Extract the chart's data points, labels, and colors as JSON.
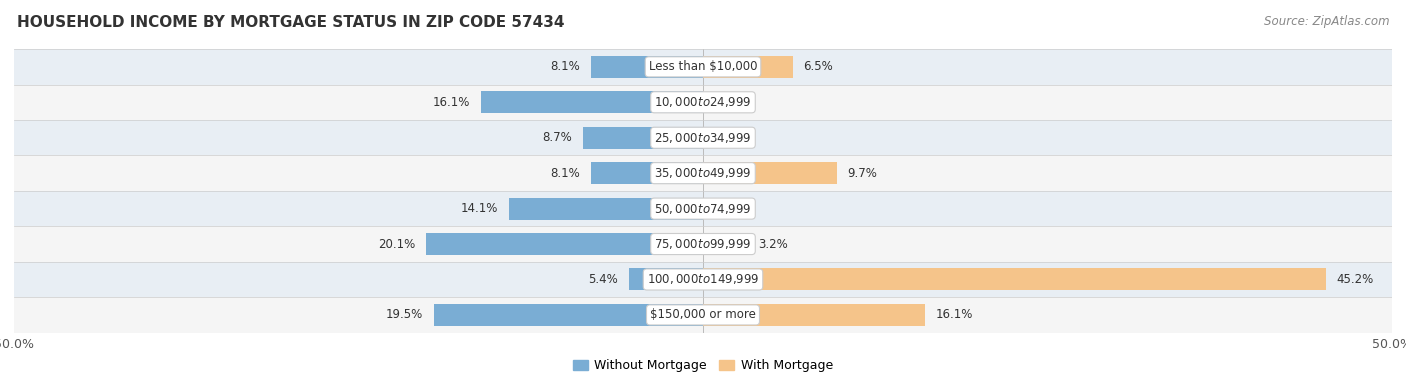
{
  "title": "HOUSEHOLD INCOME BY MORTGAGE STATUS IN ZIP CODE 57434",
  "source": "Source: ZipAtlas.com",
  "categories": [
    "Less than $10,000",
    "$10,000 to $24,999",
    "$25,000 to $34,999",
    "$35,000 to $49,999",
    "$50,000 to $74,999",
    "$75,000 to $99,999",
    "$100,000 to $149,999",
    "$150,000 or more"
  ],
  "without_mortgage": [
    8.1,
    16.1,
    8.7,
    8.1,
    14.1,
    20.1,
    5.4,
    19.5
  ],
  "with_mortgage": [
    6.5,
    0.0,
    0.0,
    9.7,
    0.0,
    3.2,
    45.2,
    16.1
  ],
  "color_without": "#7aadd4",
  "color_with": "#f5c48a",
  "row_color_odd": "#e8eef4",
  "row_color_even": "#f5f5f5",
  "xlim": [
    -50,
    50
  ],
  "legend_without": "Without Mortgage",
  "legend_with": "With Mortgage",
  "title_fontsize": 11,
  "source_fontsize": 8.5,
  "bar_height": 0.62,
  "label_fontsize": 8.5,
  "cat_label_fontsize": 8.5
}
